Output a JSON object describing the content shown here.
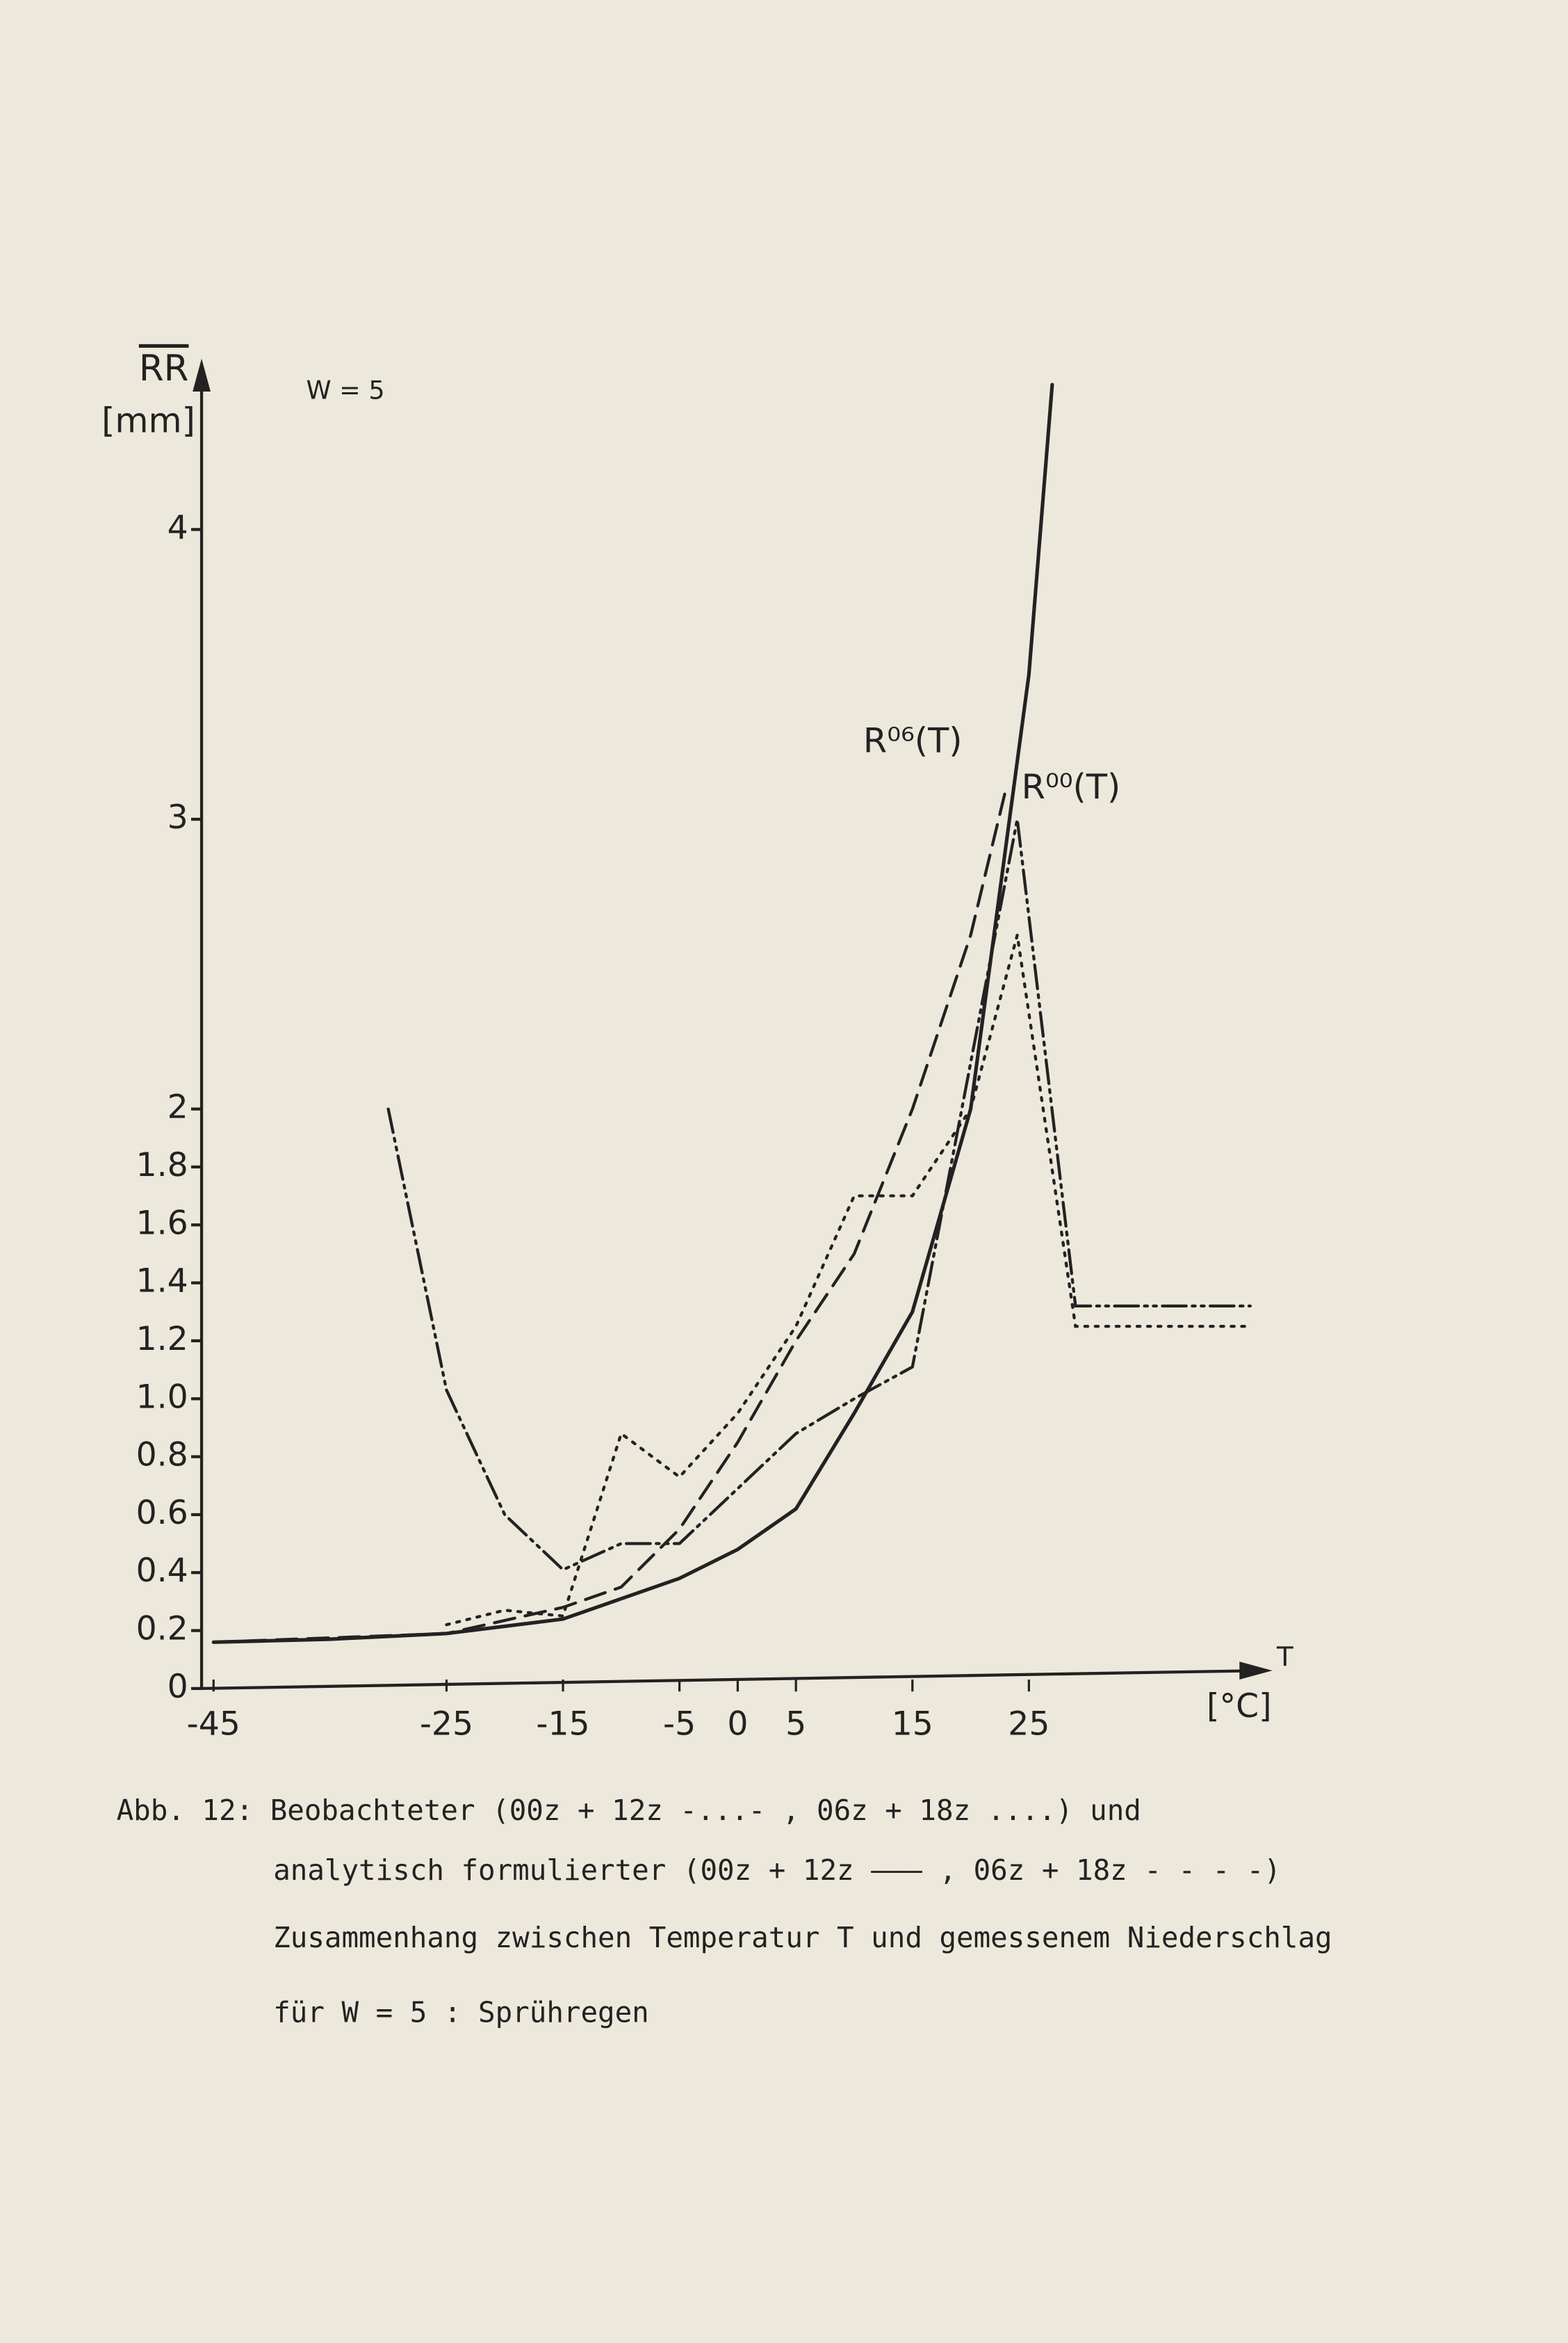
{
  "chart_data": {
    "type": "line",
    "annotation": "W = 5",
    "y_label": "RR",
    "y_unit": "[mm]",
    "x_label": "T",
    "x_unit": "[°C]",
    "curve_labels": [
      "R⁰⁶(T)",
      "R⁰⁰(T)"
    ],
    "xlim": [
      -45,
      45
    ],
    "ylim": [
      0,
      4.6
    ],
    "xticks": [
      -45,
      -25,
      -15,
      -5,
      0,
      5,
      15,
      25
    ],
    "yticks": [
      0,
      {
        "value": 0.2,
        "label": "0.2"
      },
      {
        "value": 0.4,
        "label": "0.4"
      },
      {
        "value": 0.6,
        "label": "0.6"
      },
      {
        "value": 0.8,
        "label": "0.8"
      },
      {
        "value": 1,
        "label": "1.0"
      },
      {
        "value": 1.2,
        "label": "1.2"
      },
      {
        "value": 1.4,
        "label": "1.4"
      },
      {
        "value": 1.6,
        "label": "1.6"
      },
      {
        "value": 1.8,
        "label": "1.8"
      },
      2,
      3,
      4
    ],
    "grid": false,
    "series": [
      {
        "style": "dash-dot",
        "color": "#222222",
        "x": [
          -30,
          -25,
          -20,
          -15,
          -10,
          -5,
          5,
          10,
          15,
          24,
          29,
          44
        ],
        "values": [
          2.0,
          1.03,
          0.6,
          0.41,
          0.5,
          0.5,
          0.88,
          1.0,
          1.11,
          3.0,
          1.32,
          1.32
        ]
      },
      {
        "style": "dotted",
        "color": "#222222",
        "x": [
          -25,
          -20,
          -15,
          -10,
          -5,
          0,
          5,
          10,
          15,
          20,
          24,
          29,
          44
        ],
        "values": [
          0.22,
          0.27,
          0.25,
          0.88,
          0.73,
          0.95,
          1.25,
          1.7,
          1.7,
          2.0,
          2.6,
          1.25,
          1.25
        ]
      },
      {
        "style": "solid",
        "color": "#222222",
        "x": [
          -45,
          -35,
          -25,
          -15,
          -5,
          0,
          5,
          10,
          15,
          20,
          25,
          27
        ],
        "values": [
          0.16,
          0.17,
          0.19,
          0.24,
          0.38,
          0.48,
          0.62,
          0.95,
          1.3,
          2.0,
          3.5,
          4.5
        ]
      },
      {
        "style": "dashed",
        "color": "#222222",
        "x": [
          -45,
          -25,
          -15,
          -10,
          -5,
          0,
          5,
          10,
          15,
          20,
          23
        ],
        "values": [
          0.16,
          0.19,
          0.28,
          0.35,
          0.55,
          0.85,
          1.2,
          1.5,
          2.0,
          2.6,
          3.1
        ]
      }
    ],
    "caption": [
      "Abb. 12: Beobachteter (00z + 12z  -...- , 06z + 18z  ....) und",
      "analytisch formulierter (00z + 12z  ——— , 06z + 18z - - - -)",
      "Zusammenhang zwischen Temperatur T und gemessenem Niederschlag",
      "für W = 5 : Sprühregen"
    ]
  }
}
